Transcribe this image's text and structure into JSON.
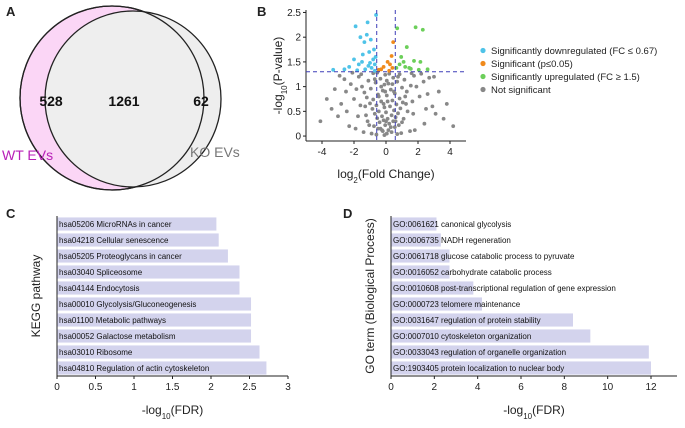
{
  "panel_labels": [
    "A",
    "B",
    "C",
    "D"
  ],
  "venn": {
    "sets": [
      {
        "name": "WT EVs",
        "only": "528",
        "color": "#b81fb8",
        "fill": "#fbd6f6"
      },
      {
        "name": "KO EVs",
        "only": "62",
        "color": "#777777",
        "fill": "#eeeeee"
      }
    ],
    "overlap": "1261"
  },
  "chart_data": [
    {
      "type": "scatter",
      "panel": "B",
      "xlabel_main": "log",
      "xlabel_sub": "2",
      "xlabel_tail": "(Fold Change)",
      "ylabel_main": "-log",
      "ylabel_sub": "10",
      "ylabel_tail": "(P-value)",
      "xlim": [
        -5,
        5
      ],
      "ylim": [
        -0.1,
        2.55
      ],
      "xticks": [
        "-4",
        "-2",
        "0",
        "2",
        "4"
      ],
      "yticks": [
        "0",
        "0.5",
        "1",
        "1.5",
        "2",
        "2.5"
      ],
      "thresholds": {
        "x": [
          -0.58,
          0.58
        ],
        "y": 1.3
      },
      "legend_position": "right",
      "categories": [
        {
          "name": "Significantly downregulated (FC ≤ 0.67)",
          "color": "#4fc3e8"
        },
        {
          "name": "Significant (p≤0.05)",
          "color": "#f08a1c"
        },
        {
          "name": "Significantly upregulated (FC ≥ 1.5)",
          "color": "#6ccf5a"
        },
        {
          "name": "Not significant",
          "color": "#888888"
        }
      ],
      "series": [
        {
          "category": 0,
          "points": [
            [
              -1.9,
              2.22
            ],
            [
              -1.6,
              2.0
            ],
            [
              -1.35,
              1.9
            ],
            [
              -1.2,
              2.05
            ],
            [
              -1.05,
              1.7
            ],
            [
              -0.95,
              1.95
            ],
            [
              -0.8,
              1.55
            ],
            [
              -1.7,
              1.45
            ],
            [
              -1.5,
              1.5
            ],
            [
              -1.3,
              1.35
            ],
            [
              -2.3,
              1.4
            ],
            [
              -2.6,
              1.35
            ],
            [
              -1.1,
              1.42
            ],
            [
              -0.9,
              1.38
            ],
            [
              -0.7,
              1.32
            ],
            [
              -0.65,
              1.6
            ],
            [
              -1.45,
              1.65
            ],
            [
              -0.75,
              1.75
            ],
            [
              -1.15,
              2.3
            ],
            [
              -2.0,
              1.55
            ],
            [
              -1.8,
              1.33
            ],
            [
              -3.3,
              1.34
            ],
            [
              -0.62,
              2.45
            ],
            [
              -0.7,
              1.45
            ],
            [
              -1.0,
              1.48
            ]
          ]
        },
        {
          "category": 1,
          "points": [
            [
              -0.3,
              1.35
            ],
            [
              -0.15,
              1.4
            ],
            [
              0.1,
              1.5
            ],
            [
              0.25,
              1.45
            ],
            [
              0.4,
              1.38
            ],
            [
              0.45,
              1.9
            ],
            [
              0.35,
              1.62
            ],
            [
              0.2,
              1.32
            ],
            [
              -0.45,
              1.34
            ]
          ]
        },
        {
          "category": 2,
          "points": [
            [
              0.65,
              1.38
            ],
            [
              0.85,
              1.45
            ],
            [
              1.1,
              1.5
            ],
            [
              1.3,
              1.8
            ],
            [
              1.55,
              1.36
            ],
            [
              1.75,
              1.52
            ],
            [
              2.05,
              1.34
            ],
            [
              2.15,
              1.5
            ],
            [
              2.3,
              2.15
            ],
            [
              0.95,
              1.6
            ],
            [
              1.2,
              1.4
            ],
            [
              0.7,
              2.18
            ],
            [
              1.85,
              2.2
            ],
            [
              2.6,
              1.35
            ],
            [
              1.45,
              1.38
            ]
          ]
        },
        {
          "category": 3,
          "points": [
            [
              -0.1,
              0.02
            ],
            [
              0.05,
              0.05
            ],
            [
              -0.2,
              0.1
            ],
            [
              0.15,
              0.12
            ],
            [
              -0.35,
              0.15
            ],
            [
              0.3,
              0.18
            ],
            [
              -0.05,
              0.22
            ],
            [
              0.2,
              0.25
            ],
            [
              -0.4,
              0.28
            ],
            [
              0.45,
              0.3
            ],
            [
              -0.15,
              0.32
            ],
            [
              0.1,
              0.35
            ],
            [
              -0.55,
              0.36
            ],
            [
              0.6,
              0.38
            ],
            [
              -0.25,
              0.4
            ],
            [
              0.35,
              0.42
            ],
            [
              -0.7,
              0.45
            ],
            [
              0.75,
              0.46
            ],
            [
              0.0,
              0.48
            ],
            [
              -0.45,
              0.5
            ],
            [
              0.5,
              0.52
            ],
            [
              -0.85,
              0.55
            ],
            [
              0.9,
              0.56
            ],
            [
              -0.1,
              0.58
            ],
            [
              0.25,
              0.6
            ],
            [
              -0.6,
              0.62
            ],
            [
              0.65,
              0.64
            ],
            [
              -1.0,
              0.66
            ],
            [
              1.05,
              0.68
            ],
            [
              -0.3,
              0.7
            ],
            [
              0.4,
              0.72
            ],
            [
              -0.8,
              0.74
            ],
            [
              0.85,
              0.76
            ],
            [
              -1.2,
              0.78
            ],
            [
              1.2,
              0.8
            ],
            [
              0.05,
              0.82
            ],
            [
              -0.5,
              0.84
            ],
            [
              0.55,
              0.86
            ],
            [
              -1.35,
              0.88
            ],
            [
              1.3,
              0.9
            ],
            [
              -0.2,
              0.92
            ],
            [
              0.3,
              0.94
            ],
            [
              -0.95,
              0.96
            ],
            [
              1.0,
              0.98
            ],
            [
              -1.5,
              1.0
            ],
            [
              1.55,
              1.02
            ],
            [
              -0.1,
              1.04
            ],
            [
              0.15,
              1.06
            ],
            [
              -0.65,
              1.08
            ],
            [
              0.7,
              1.1
            ],
            [
              -1.1,
              1.12
            ],
            [
              1.15,
              1.14
            ],
            [
              -0.35,
              1.16
            ],
            [
              0.45,
              1.18
            ],
            [
              -1.7,
              1.2
            ],
            [
              1.75,
              1.22
            ],
            [
              -0.05,
              1.24
            ],
            [
              0.2,
              1.26
            ],
            [
              -0.55,
              1.28
            ],
            [
              0.6,
              0.3
            ],
            [
              -1.25,
              0.42
            ],
            [
              1.35,
              0.5
            ],
            [
              -1.6,
              0.62
            ],
            [
              1.65,
              0.7
            ],
            [
              -2.0,
              0.75
            ],
            [
              2.1,
              0.8
            ],
            [
              -1.85,
              0.95
            ],
            [
              1.9,
              1.0
            ],
            [
              -2.2,
              1.05
            ],
            [
              2.35,
              1.1
            ],
            [
              -2.5,
              0.9
            ],
            [
              2.6,
              0.85
            ],
            [
              -2.8,
              0.65
            ],
            [
              2.9,
              0.6
            ],
            [
              -3.0,
              0.4
            ],
            [
              3.1,
              0.45
            ],
            [
              -3.4,
              0.55
            ],
            [
              -4.1,
              0.3
            ],
            [
              3.6,
              0.35
            ],
            [
              4.2,
              0.2
            ],
            [
              -2.3,
              0.2
            ],
            [
              2.4,
              0.25
            ],
            [
              -1.9,
              0.15
            ],
            [
              1.8,
              0.12
            ],
            [
              -1.4,
              0.08
            ],
            [
              1.5,
              0.1
            ],
            [
              -0.9,
              0.05
            ],
            [
              0.95,
              0.06
            ],
            [
              -0.6,
              0.03
            ],
            [
              0.7,
              0.04
            ],
            [
              -2.6,
              1.15
            ],
            [
              2.7,
              1.18
            ],
            [
              -3.2,
              0.95
            ],
            [
              3.3,
              0.9
            ],
            [
              -1.55,
              1.25
            ],
            [
              1.6,
              1.27
            ],
            [
              -2.1,
              1.28
            ],
            [
              2.2,
              1.26
            ],
            [
              -0.8,
              1.27
            ],
            [
              0.85,
              1.25
            ],
            [
              -0.25,
              0.12
            ],
            [
              0.35,
              0.08
            ],
            [
              -0.75,
              0.2
            ],
            [
              0.8,
              0.22
            ],
            [
              -1.15,
              0.3
            ],
            [
              1.1,
              0.35
            ],
            [
              -1.75,
              0.4
            ],
            [
              1.7,
              0.45
            ],
            [
              -2.45,
              0.5
            ],
            [
              2.5,
              0.55
            ],
            [
              -0.15,
              0.65
            ],
            [
              0.1,
              0.7
            ],
            [
              -0.45,
              0.8
            ],
            [
              0.5,
              0.9
            ],
            [
              -0.3,
              1.0
            ],
            [
              0.4,
              1.05
            ],
            [
              -0.7,
              1.15
            ],
            [
              0.75,
              1.2
            ],
            [
              -1.3,
              0.6
            ],
            [
              1.25,
              0.65
            ],
            [
              0.0,
              0.3
            ],
            [
              -0.05,
              0.9
            ],
            [
              0.05,
              1.12
            ],
            [
              -3.7,
              0.75
            ],
            [
              3.8,
              0.65
            ],
            [
              -2.9,
              1.22
            ],
            [
              3.0,
              1.2
            ],
            [
              -1.05,
              0.22
            ],
            [
              1.0,
              0.28
            ],
            [
              -0.5,
              0.15
            ],
            [
              0.55,
              0.18
            ]
          ]
        }
      ]
    },
    {
      "type": "bar",
      "orientation": "horizontal",
      "panel": "C",
      "ylabel": "KEGG pathway",
      "xlabel_main": "-log",
      "xlabel_sub": "10",
      "xlabel_tail": "(FDR)",
      "xlim": [
        0,
        3
      ],
      "xticks": [
        "0",
        "0.5",
        "1",
        "1.5",
        "2",
        "2.5",
        "3"
      ],
      "bar_color": "#d3d3ed",
      "categories": [
        "hsa05206 MicroRNAs in cancer",
        "hsa04218 Cellular senescence",
        "hsa05205 Proteoglycans in cancer",
        "hsa03040 Spliceosome",
        "hsa04144 Endocytosis",
        "hsa00010 Glycolysis/Gluconeogenesis",
        "hsa01100 Metabolic pathways",
        "hsa00052 Galactose metabolism",
        "hsa03010 Ribosome",
        "hsa04810 Regulation of actin cytoskeleton"
      ],
      "values": [
        2.07,
        2.1,
        2.22,
        2.37,
        2.37,
        2.52,
        2.52,
        2.52,
        2.63,
        2.72
      ]
    },
    {
      "type": "bar",
      "orientation": "horizontal",
      "panel": "D",
      "ylabel": "GO term (Biological Process)",
      "xlabel_main": "-log",
      "xlabel_sub": "10",
      "xlabel_tail": "(FDR)",
      "xlim": [
        0,
        13.2
      ],
      "xticks": [
        "0",
        "2",
        "4",
        "6",
        "8",
        "10",
        "12"
      ],
      "bar_color": "#d3d3ed",
      "categories": [
        "GO:0061621 canonical glycolysis",
        "GO:0006735 NADH regeneration",
        "GO:0061718 glucose catabolic process to pyruvate",
        "GO:0016052 carbohydrate catabolic process",
        "GO:0010608 post-transcriptional regulation of gene expression",
        "GO:0000723 telomere maintenance",
        "GO:0031647 regulation of protein stability",
        "GO:0007010 cytoskeleton organization",
        "GO:0033043 regulation of organelle organization",
        "GO:1903405 protein localization to nuclear body"
      ],
      "values": [
        2.1,
        2.3,
        2.7,
        2.7,
        3.8,
        4.2,
        8.4,
        9.2,
        11.9,
        12.0
      ]
    }
  ]
}
